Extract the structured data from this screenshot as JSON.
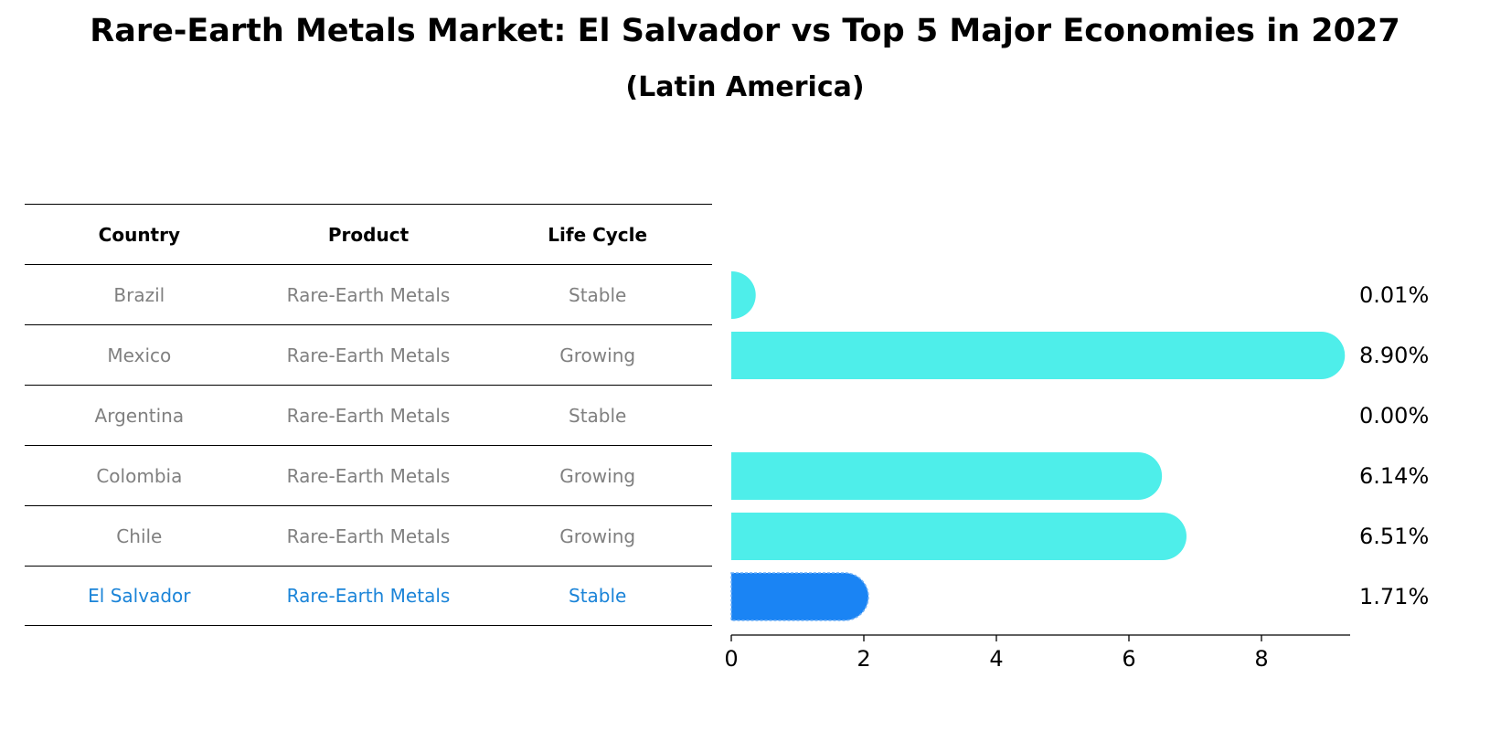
{
  "title": "Rare-Earth Metals Market: El Salvador vs Top 5 Major Economies in 2027",
  "subtitle": "(Latin America)",
  "table": {
    "headers": [
      "Country",
      "Product",
      "Life Cycle"
    ],
    "rows": [
      {
        "country": "Brazil",
        "product": "Rare-Earth Metals",
        "life_cycle": "Stable"
      },
      {
        "country": "Mexico",
        "product": "Rare-Earth Metals",
        "life_cycle": "Growing"
      },
      {
        "country": "Argentina",
        "product": "Rare-Earth Metals",
        "life_cycle": "Stable"
      },
      {
        "country": "Colombia",
        "product": "Rare-Earth Metals",
        "life_cycle": "Growing"
      },
      {
        "country": "Chile",
        "product": "Rare-Earth Metals",
        "life_cycle": "Growing"
      },
      {
        "country": "El Salvador",
        "product": "Rare-Earth Metals",
        "life_cycle": "Stable"
      }
    ]
  },
  "colors": {
    "bar": "#4eeeea",
    "highlight_bar": "#1a84f4",
    "highlight_text": "#1b84d8",
    "muted_text": "#808080"
  },
  "chart_data": {
    "type": "bar",
    "orientation": "horizontal",
    "categories": [
      "Brazil",
      "Mexico",
      "Argentina",
      "Colombia",
      "Chile",
      "El Salvador"
    ],
    "values": [
      0.01,
      8.9,
      0.0,
      6.14,
      6.51,
      1.71
    ],
    "value_labels": [
      "0.01%",
      "8.90%",
      "0.00%",
      "6.14%",
      "6.51%",
      "1.71%"
    ],
    "highlight": "El Salvador",
    "xticks": [
      0,
      2,
      4,
      6,
      8
    ],
    "xlim": [
      0,
      9.35
    ]
  }
}
